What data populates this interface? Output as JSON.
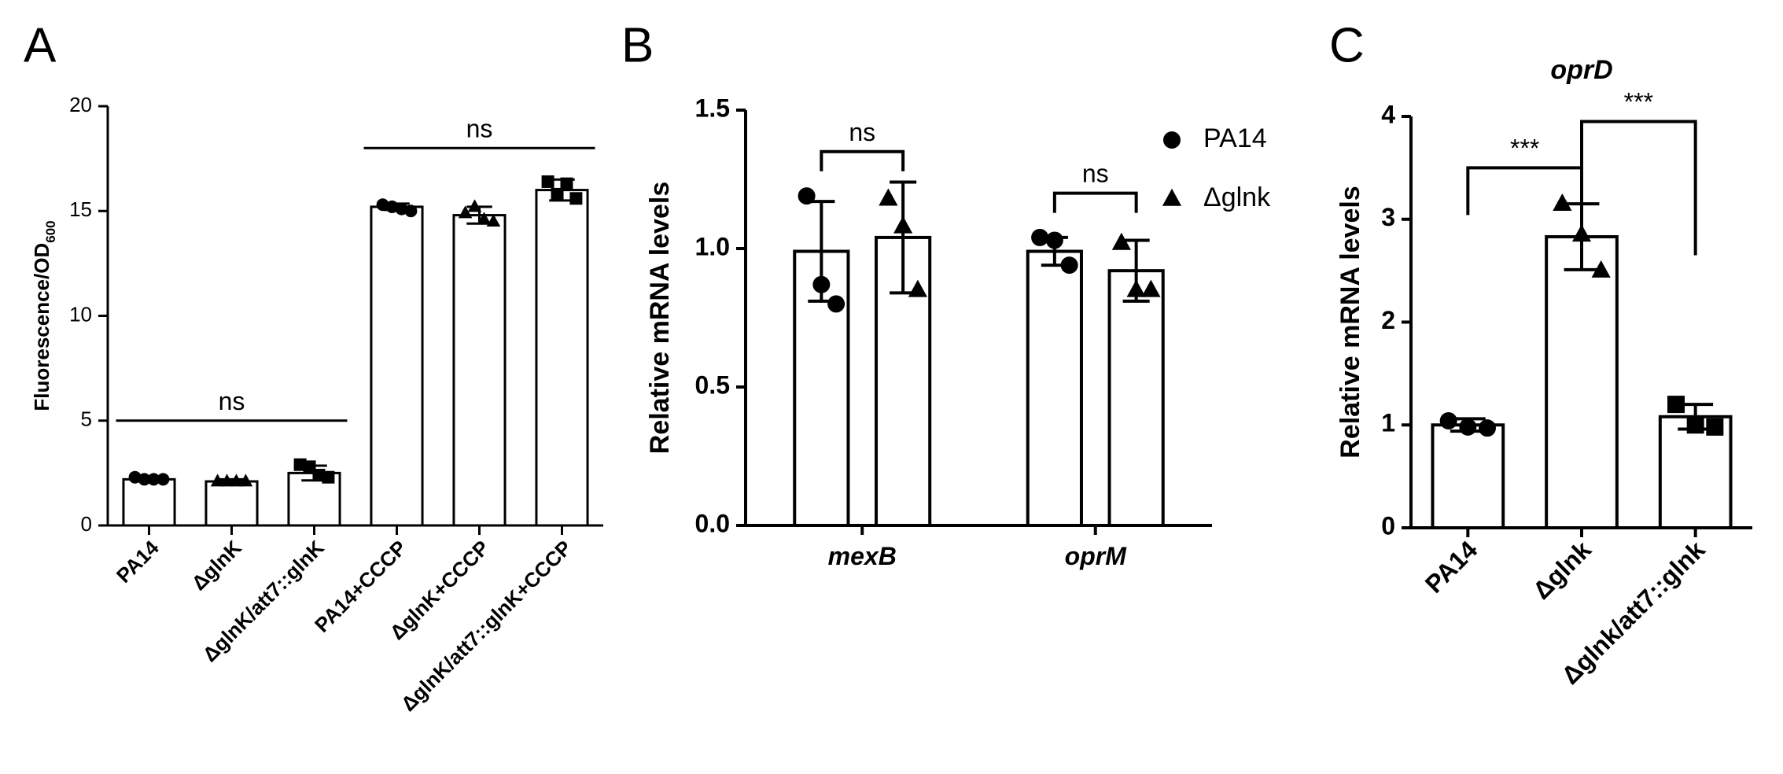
{
  "chart_data": [
    {
      "type": "bar",
      "panel": "A",
      "y_label": "Fluorescence/OD",
      "y_label_sub": "600",
      "categories": [
        "PA14",
        "ΔglnK",
        "ΔglnK/att7::glnK",
        "PA14+CCCP",
        "ΔglnK+CCCP",
        "ΔglnK/att7::glnK+CCCP"
      ],
      "values": [
        2.2,
        2.1,
        2.5,
        15.2,
        14.8,
        16.0
      ],
      "errors": [
        0.1,
        0.1,
        0.35,
        0.15,
        0.4,
        0.5
      ],
      "points": [
        [
          2.3,
          2.2,
          2.2,
          2.2
        ],
        [
          2.1,
          2.1,
          2.1,
          2.1
        ],
        [
          2.9,
          2.8,
          2.4,
          2.3
        ],
        [
          15.3,
          15.2,
          15.1,
          15.0
        ],
        [
          14.9,
          15.2,
          14.6,
          14.5
        ],
        [
          16.4,
          15.8,
          16.3,
          15.6
        ]
      ],
      "markers": [
        "circle",
        "triangle",
        "square",
        "circle",
        "triangle",
        "square"
      ],
      "ylim": [
        0,
        20
      ],
      "yticks": [
        0,
        5,
        10,
        15,
        20
      ],
      "color": "#000000",
      "annotations": [
        {
          "text": "ns",
          "span": [
            0,
            2
          ],
          "y": 5.0
        },
        {
          "text": "ns",
          "span": [
            3,
            5
          ],
          "y": 18.0
        }
      ]
    },
    {
      "type": "grouped_bar",
      "panel": "B",
      "y_label": "Relative mRNA levels",
      "categories": [
        "mexB",
        "oprM"
      ],
      "series": [
        {
          "name": "PA14",
          "marker": "circle",
          "color": "#000000",
          "values": [
            0.99,
            0.99
          ],
          "errors": [
            0.18,
            0.05
          ],
          "points": [
            [
              1.19,
              0.87,
              0.8
            ],
            [
              1.04,
              1.03,
              0.94
            ]
          ]
        },
        {
          "name": "Δglnk",
          "marker": "triangle",
          "color": "#000000",
          "values": [
            1.04,
            0.92
          ],
          "errors": [
            0.2,
            0.11
          ],
          "points": [
            [
              1.18,
              1.08,
              0.85
            ],
            [
              1.02,
              0.85,
              0.85
            ]
          ]
        }
      ],
      "ylim": [
        0,
        1.5
      ],
      "yticks": [
        {
          "value": 0,
          "label": "0.0"
        },
        0.5,
        {
          "value": 1,
          "label": "1.0"
        },
        1.5
      ],
      "legend": "upper right",
      "annotations": [
        {
          "text": "ns",
          "group": 0,
          "y": 1.35
        },
        {
          "text": "ns",
          "group": 1,
          "y": 1.2
        }
      ]
    },
    {
      "type": "bar",
      "panel": "C",
      "title": "oprD",
      "y_label": "Relative mRNA levels",
      "categories": [
        "PA14",
        "Δglnk",
        "Δglnk/att7::glnk"
      ],
      "values": [
        1.0,
        2.83,
        1.08
      ],
      "errors": [
        0.06,
        0.32,
        0.12
      ],
      "points": [
        [
          1.04,
          0.98,
          0.97
        ],
        [
          3.15,
          2.85,
          2.5
        ],
        [
          1.2,
          1.0,
          0.98
        ]
      ],
      "markers": [
        "circle",
        "triangle",
        "square"
      ],
      "ylim": [
        0,
        4
      ],
      "yticks": [
        0,
        1,
        2,
        3,
        4
      ],
      "color": "#000000",
      "annotations": [
        {
          "text": "***",
          "span": [
            0,
            1
          ],
          "y": 3.5
        },
        {
          "text": "***",
          "span": [
            1,
            2
          ],
          "y": 3.95
        }
      ]
    }
  ]
}
